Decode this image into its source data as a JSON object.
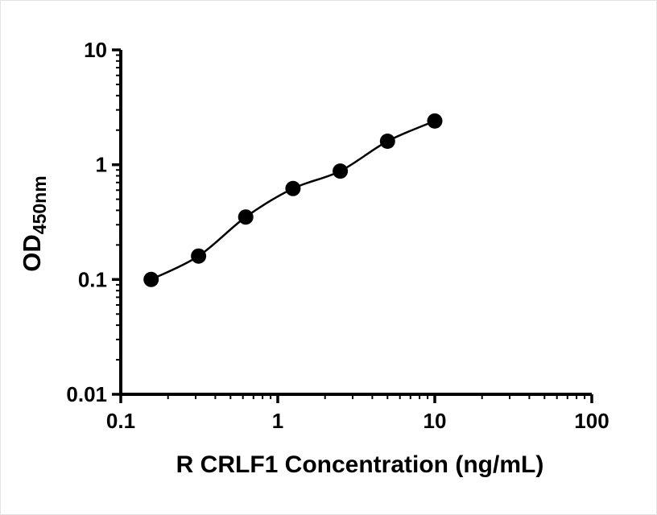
{
  "chart_data": {
    "type": "scatter",
    "title": "",
    "xlabel": "R CRLF1 Concentration (ng/mL)",
    "ylabel": "OD",
    "ylabel_sub": "450nm",
    "x_scale": "log",
    "y_scale": "log",
    "xlim": [
      0.1,
      100
    ],
    "ylim": [
      0.01,
      10
    ],
    "x_ticks": [
      0.1,
      1,
      10,
      100
    ],
    "x_tick_labels": [
      "0.1",
      "1",
      "10",
      "100"
    ],
    "y_ticks": [
      0.01,
      0.1,
      1,
      10
    ],
    "y_tick_labels": [
      "0.01",
      "0.1",
      "1",
      "10"
    ],
    "grid": false,
    "legend": false,
    "x": [
      0.156,
      0.313,
      0.625,
      1.25,
      2.5,
      5,
      10
    ],
    "y": [
      0.1,
      0.16,
      0.35,
      0.62,
      0.88,
      1.6,
      2.4
    ],
    "fit": "smooth-curve-through-points",
    "marker": "filled-circle",
    "marker_color": "#000000",
    "line_color": "#000000",
    "axis_color": "#000000",
    "background_color": "#ffffff"
  }
}
